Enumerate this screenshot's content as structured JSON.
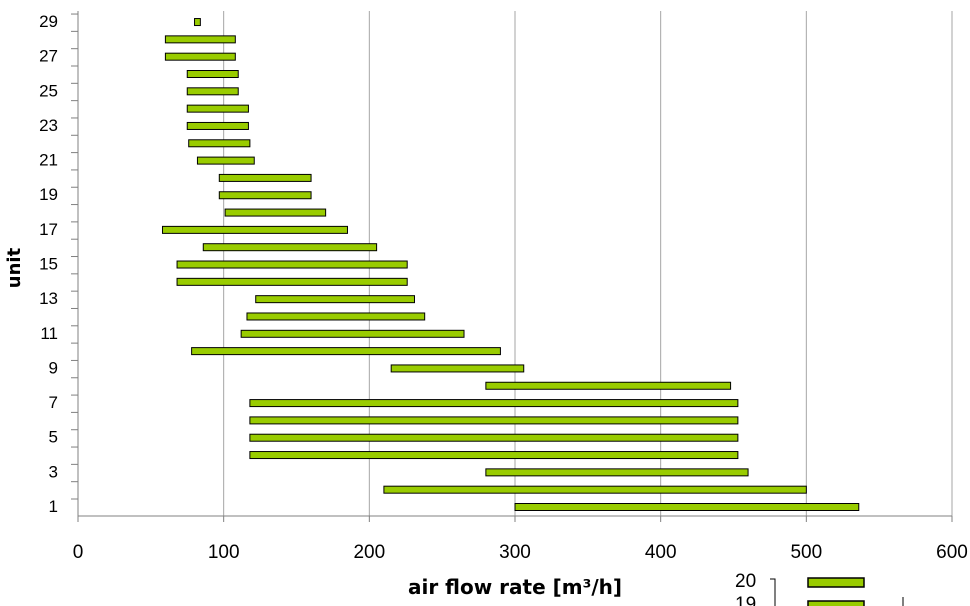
{
  "chart_data": {
    "type": "bar",
    "orientation": "horizontal-floating",
    "xlabel": "air flow rate [m³/h]",
    "ylabel": "unit",
    "xlim": [
      0,
      600
    ],
    "xticks": [
      "0",
      "100",
      "200",
      "300",
      "400",
      "500",
      "600"
    ],
    "ylim": [
      1,
      29
    ],
    "yticks_labeled": [
      "1",
      "3",
      "5",
      "7",
      "9",
      "11",
      "13",
      "15",
      "17",
      "19",
      "21",
      "23",
      "25",
      "27",
      "29"
    ],
    "grid": "vertical",
    "bar_color": "#99cc00",
    "bar_edge_color": "#000000",
    "units": [
      {
        "unit": 1,
        "min": 300,
        "max": 536
      },
      {
        "unit": 2,
        "min": 210,
        "max": 500
      },
      {
        "unit": 3,
        "min": 280,
        "max": 460
      },
      {
        "unit": 4,
        "min": 118,
        "max": 453
      },
      {
        "unit": 5,
        "min": 118,
        "max": 453
      },
      {
        "unit": 6,
        "min": 118,
        "max": 453
      },
      {
        "unit": 7,
        "min": 118,
        "max": 453
      },
      {
        "unit": 8,
        "min": 280,
        "max": 448
      },
      {
        "unit": 9,
        "min": 215,
        "max": 306
      },
      {
        "unit": 10,
        "min": 78,
        "max": 290
      },
      {
        "unit": 11,
        "min": 112,
        "max": 265
      },
      {
        "unit": 12,
        "min": 116,
        "max": 238
      },
      {
        "unit": 13,
        "min": 122,
        "max": 231
      },
      {
        "unit": 14,
        "min": 68,
        "max": 226
      },
      {
        "unit": 15,
        "min": 68,
        "max": 226
      },
      {
        "unit": 16,
        "min": 86,
        "max": 205
      },
      {
        "unit": 17,
        "min": 58,
        "max": 185
      },
      {
        "unit": 18,
        "min": 101,
        "max": 170
      },
      {
        "unit": 19,
        "min": 97,
        "max": 160
      },
      {
        "unit": 20,
        "min": 97,
        "max": 160
      },
      {
        "unit": 21,
        "min": 82,
        "max": 121
      },
      {
        "unit": 22,
        "min": 76,
        "max": 118
      },
      {
        "unit": 23,
        "min": 75,
        "max": 117
      },
      {
        "unit": 24,
        "min": 75,
        "max": 117
      },
      {
        "unit": 25,
        "min": 75,
        "max": 110
      },
      {
        "unit": 26,
        "min": 75,
        "max": 110
      },
      {
        "unit": 27,
        "min": 60,
        "max": 108
      },
      {
        "unit": 28,
        "min": 60,
        "max": 108
      },
      {
        "unit": 29,
        "min": 80,
        "max": 84
      }
    ]
  },
  "legend_fragment": {
    "labels": [
      "20",
      "19"
    ]
  }
}
